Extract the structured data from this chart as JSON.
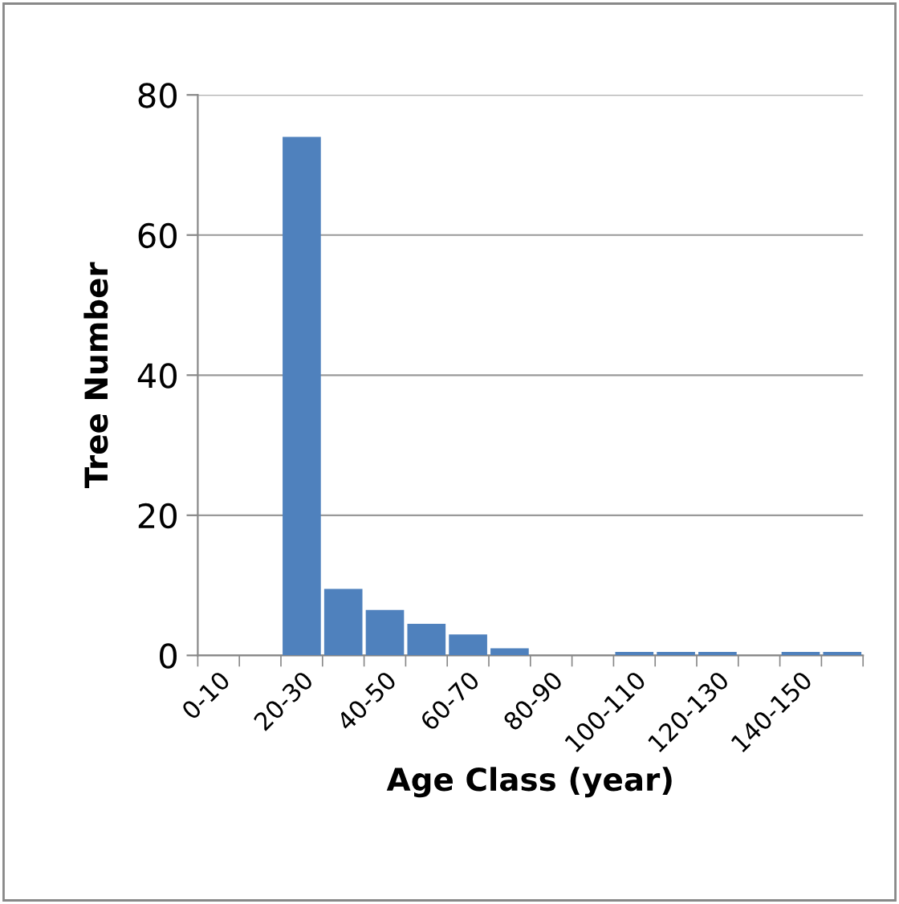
{
  "chart_data": {
    "type": "bar",
    "xlabel": "Age Class (year)",
    "ylabel": "Tree Number",
    "categories": [
      "0-10",
      null,
      "20-30",
      null,
      "40-50",
      null,
      "60-70",
      null,
      "80-90",
      null,
      "100-110",
      null,
      "120-130",
      null,
      "140-150",
      null
    ],
    "values": [
      0,
      0,
      74,
      9.5,
      6.5,
      4.5,
      3,
      1,
      0,
      0,
      0.5,
      0.5,
      0.5,
      0,
      0.5,
      0.5
    ],
    "color": "#4f81bd",
    "ylim": [
      0,
      80
    ],
    "yticks": [
      0,
      20,
      40,
      60,
      80
    ],
    "grid": "y",
    "legend": false
  }
}
